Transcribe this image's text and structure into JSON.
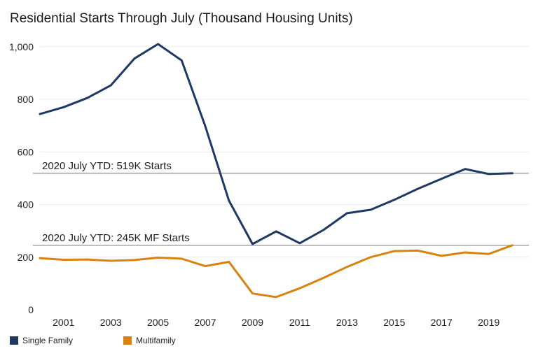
{
  "chart_data": {
    "type": "line",
    "title": "Residential Starts Through July (Thousand Housing Units)",
    "xlabel": "",
    "ylabel": "",
    "x": [
      2000,
      2001,
      2002,
      2003,
      2004,
      2005,
      2006,
      2007,
      2008,
      2009,
      2010,
      2011,
      2012,
      2013,
      2014,
      2015,
      2016,
      2017,
      2018,
      2019,
      2020
    ],
    "x_tick_labels": [
      "2001",
      "2003",
      "2005",
      "2007",
      "2009",
      "2011",
      "2013",
      "2015",
      "2017",
      "2019"
    ],
    "xlim": [
      2000,
      2020.7
    ],
    "ylim": [
      0,
      1050
    ],
    "y_ticks": [
      0,
      200,
      400,
      600,
      800,
      1000
    ],
    "y_tick_labels": [
      "0",
      "200",
      "400",
      "600",
      "800",
      "1,000"
    ],
    "grid": "horizontal",
    "legend_position": "bottom-left",
    "series": [
      {
        "name": "Single Family",
        "color": "#1f3864",
        "values": [
          744,
          770,
          805,
          853,
          955,
          1010,
          948,
          698,
          415,
          250,
          298,
          253,
          303,
          367,
          380,
          418,
          460,
          498,
          535,
          516,
          519
        ]
      },
      {
        "name": "Multifamily",
        "color": "#d9820f",
        "values": [
          196,
          190,
          191,
          186,
          189,
          198,
          194,
          166,
          182,
          62,
          48,
          82,
          121,
          163,
          200,
          223,
          225,
          205,
          218,
          212,
          245
        ]
      }
    ],
    "reference_lines": [
      {
        "value": 519,
        "label": "2020 July YTD: 519K Starts"
      },
      {
        "value": 245,
        "label": "2020 July YTD: 245K MF Starts"
      }
    ]
  }
}
